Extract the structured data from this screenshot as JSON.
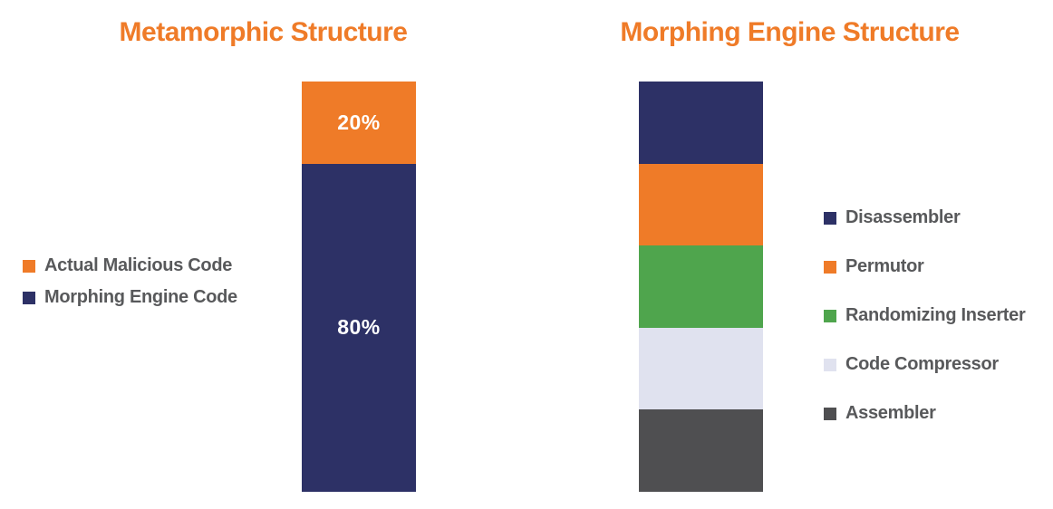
{
  "page": {
    "background": "#ffffff"
  },
  "colors": {
    "title_orange": "#EF7B28",
    "navy": "#2D3166",
    "orange": "#EF7B28",
    "green": "#4FA54D",
    "lavender": "#E0E2EF",
    "dark_gray": "#4F4F51",
    "legend_text": "#58595B",
    "data_label_text": "#FFFFFF"
  },
  "chart_data": [
    {
      "type": "bar",
      "subtype": "stacked-column",
      "title": "Metamorphic Structure",
      "legend_position": "left",
      "grid": false,
      "axes_visible": false,
      "ylim": [
        0,
        100
      ],
      "categories": [
        "Metamorphic code"
      ],
      "segments": [
        {
          "label": "Actual Malicious Code",
          "value": 20,
          "color": "#EF7B28",
          "data_label": "20%"
        },
        {
          "label": "Morphing Engine Code",
          "value": 80,
          "color": "#2D3166",
          "data_label": "80%"
        }
      ]
    },
    {
      "type": "bar",
      "subtype": "stacked-column",
      "title": "Morphing Engine Structure",
      "legend_position": "right",
      "grid": false,
      "axes_visible": false,
      "ylim": [
        0,
        100
      ],
      "categories": [
        "Morphing engine"
      ],
      "segments": [
        {
          "label": "Disassembler",
          "value": 20,
          "color": "#2D3166",
          "data_label": ""
        },
        {
          "label": "Permutor",
          "value": 20,
          "color": "#EF7B28",
          "data_label": ""
        },
        {
          "label": "Randomizing Inserter",
          "value": 20,
          "color": "#4FA54D",
          "data_label": ""
        },
        {
          "label": "Code Compressor",
          "value": 20,
          "color": "#E0E2EF",
          "data_label": ""
        },
        {
          "label": "Assembler",
          "value": 20,
          "color": "#4F4F51",
          "data_label": ""
        }
      ]
    }
  ]
}
